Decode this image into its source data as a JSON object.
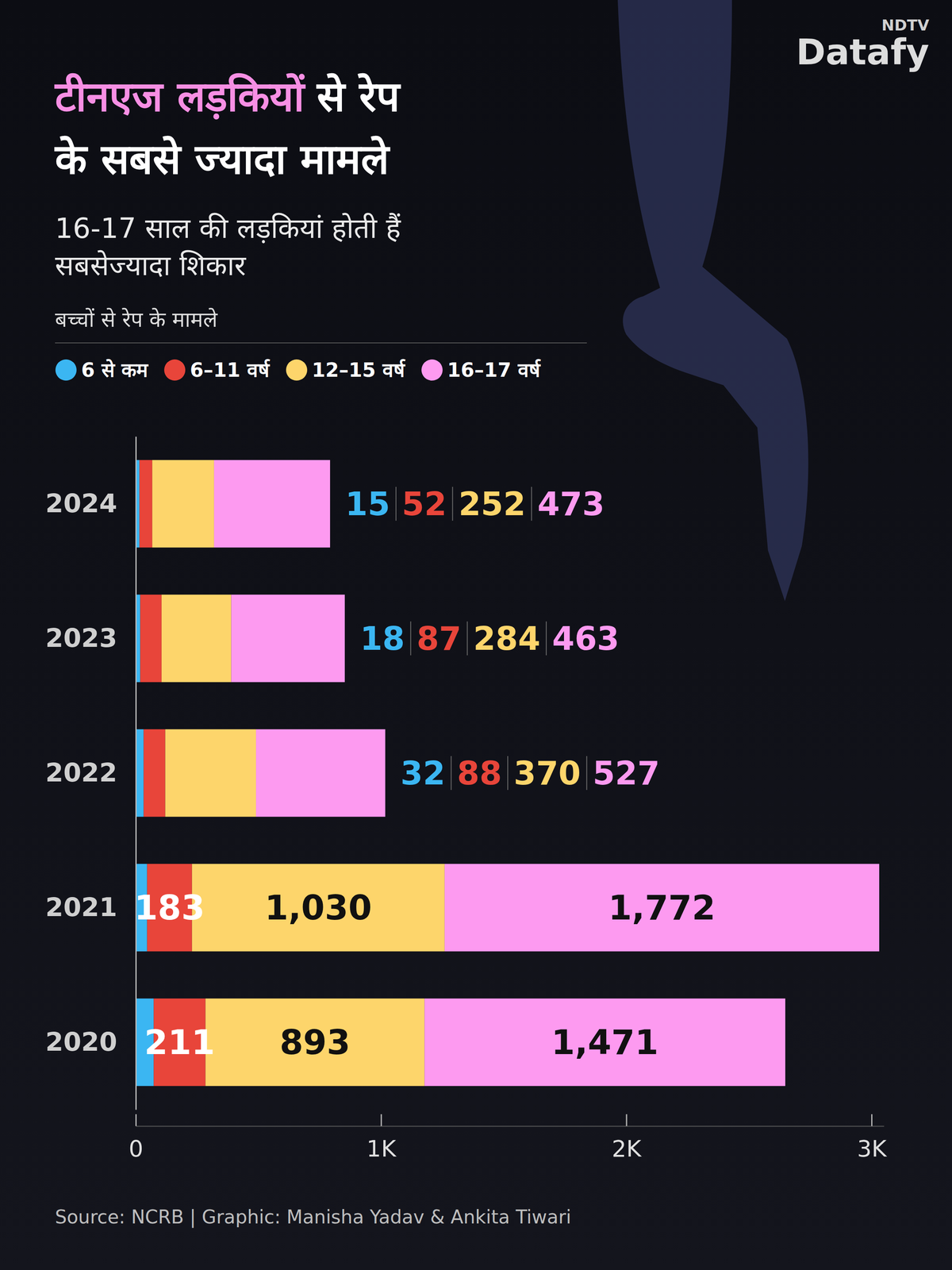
{
  "chart_data": {
    "type": "bar",
    "orientation": "horizontal",
    "stacked": true,
    "data_labels": true,
    "grid": false,
    "legend": "top-left",
    "title": [
      [
        {
          "text": "टीनएज लड़कियों",
          "color": "#f78fe4"
        },
        {
          "text": "से रेप",
          "color": "#ffffff"
        }
      ],
      [
        {
          "text": "के सबसे ज्यादा मामले",
          "color": "#ffffff"
        }
      ]
    ],
    "subtitle": [
      "16-17 साल की लड़कियां होती हैं",
      "सबसेज्यादा शिकार"
    ],
    "caption": "बच्चों से रेप के मामले",
    "categories": [
      "2024",
      "2023",
      "2022",
      "2021",
      "2020"
    ],
    "series": [
      {
        "name": "6 से कम",
        "color": "#3bb6f2",
        "values": [
          15,
          18,
          32,
          46,
          73
        ],
        "value_labels": [
          "15",
          "18",
          "32",
          null,
          null
        ]
      },
      {
        "name": "6–11 वर्ष",
        "color": "#e8453a",
        "values": [
          52,
          87,
          88,
          183,
          211
        ],
        "value_labels": [
          "52",
          "87",
          "88",
          "183",
          "211"
        ]
      },
      {
        "name": "12–15 वर्ष",
        "color": "#fdd56b",
        "values": [
          252,
          284,
          370,
          1030,
          893
        ],
        "value_labels": [
          "252",
          "284",
          "370",
          "1,030",
          "893"
        ]
      },
      {
        "name": "16–17 वर्ष",
        "color": "#fd9af0",
        "values": [
          473,
          463,
          527,
          1772,
          1471
        ],
        "value_labels": [
          "473",
          "463",
          "527",
          "1,772",
          "1,471"
        ]
      }
    ],
    "xlim": [
      0,
      3050
    ],
    "xticks": [
      0,
      {
        "value": 1000,
        "label": "1K"
      },
      {
        "value": 2000,
        "label": "2K"
      },
      {
        "value": 3000,
        "label": "3K"
      }
    ],
    "source": "Source: NCRB | Graphic: Manisha Yadav & Ankita Tiwari",
    "logo": [
      "NDTV",
      "Datafy"
    ]
  }
}
